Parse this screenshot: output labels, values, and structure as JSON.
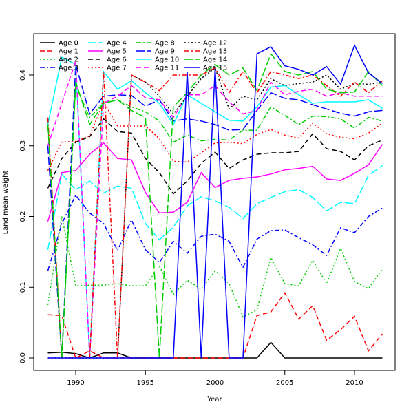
{
  "chart_data": {
    "type": "line",
    "title": "",
    "xlabel": "Year",
    "ylabel": "Land mean weight",
    "xlim": [
      1987.6,
      2012.5
    ],
    "ylim": [
      -0.018,
      0.457
    ],
    "xticks": [
      "1990",
      "1995",
      "2000",
      "2005",
      "2010"
    ],
    "yticks": [
      "0.0",
      "0.1",
      "0.2",
      "0.3",
      "0.4"
    ],
    "legend_position": "top-left",
    "x": [
      1988,
      1989,
      1990,
      1991,
      1992,
      1993,
      1994,
      1995,
      1996,
      1997,
      1998,
      1999,
      2000,
      2001,
      2002,
      2003,
      2004,
      2005,
      2006,
      2007,
      2008,
      2009,
      2010,
      2011,
      2012
    ],
    "series": [
      {
        "name": "Age 0",
        "color": "#000000",
        "style": "solid",
        "values": [
          0.007,
          0.008,
          0.006,
          0,
          0.007,
          0.007,
          0,
          0,
          0,
          0,
          0,
          0,
          0,
          0,
          0,
          0,
          0.022,
          0,
          0,
          0,
          0,
          0,
          0,
          0,
          0
        ]
      },
      {
        "name": "Age 1",
        "color": "#ff0000",
        "style": "dashed",
        "values": [
          0.061,
          0.06,
          0,
          0.01,
          0,
          0,
          0,
          0,
          0,
          0,
          0,
          0,
          0,
          0,
          0,
          0.06,
          0.065,
          0.092,
          0.055,
          0.074,
          0.025,
          0.04,
          0.059,
          0.01,
          0.034
        ]
      },
      {
        "name": "Age 2",
        "color": "#00cd00",
        "style": "dotted",
        "values": [
          0.075,
          0.2,
          0.102,
          0.103,
          0.103,
          0.105,
          0.102,
          0.102,
          0.13,
          0.09,
          0.11,
          0.097,
          0.123,
          0.105,
          0.058,
          0.068,
          0.142,
          0.105,
          0.102,
          0.138,
          0.105,
          0.155,
          0.108,
          0.098,
          0.126
        ]
      },
      {
        "name": "Age 3",
        "color": "#0000ff",
        "style": "dotdash",
        "values": [
          0.123,
          0.19,
          0.23,
          0.205,
          0.19,
          0.152,
          0.195,
          0.153,
          0.135,
          0.165,
          0.148,
          0.172,
          0.175,
          0.165,
          0.128,
          0.168,
          0.18,
          0.181,
          0.17,
          0.16,
          0.145,
          0.184,
          0.177,
          0.2,
          0.212
        ]
      },
      {
        "name": "Age 4",
        "color": "#00ffff",
        "style": "longdash",
        "values": [
          0.153,
          0.26,
          0.238,
          0.25,
          0.233,
          0.243,
          0.24,
          0.19,
          0.167,
          0.185,
          0.215,
          0.228,
          0.222,
          0.213,
          0.197,
          0.218,
          0.227,
          0.235,
          0.238,
          0.227,
          0.208,
          0.22,
          0.218,
          0.258,
          0.272
        ]
      },
      {
        "name": "Age 5",
        "color": "#ff00ff",
        "style": "solid",
        "values": [
          0.193,
          0.262,
          0.265,
          0.288,
          0.304,
          0.282,
          0.28,
          0.234,
          0.205,
          0.206,
          0.22,
          0.262,
          0.241,
          0.251,
          0.254,
          0.256,
          0.26,
          0.266,
          0.268,
          0.271,
          0.253,
          0.251,
          0.261,
          0.273,
          0.302
        ]
      },
      {
        "name": "Age 6",
        "color": "#000000",
        "style": "dashed",
        "values": [
          0.24,
          0.282,
          0.305,
          0.313,
          0.338,
          0.32,
          0.318,
          0.282,
          0.262,
          0.232,
          0.25,
          0.275,
          0.291,
          0.268,
          0.28,
          0.288,
          0.29,
          0.29,
          0.292,
          0.317,
          0.296,
          0.292,
          0.28,
          0.3,
          0.308
        ]
      },
      {
        "name": "Age 7",
        "color": "#ff0000",
        "style": "dotted",
        "values": [
          0.265,
          0.305,
          0.306,
          0.314,
          0.362,
          0.328,
          0.328,
          0.328,
          0.31,
          0.278,
          0.277,
          0.29,
          0.304,
          0.305,
          0.303,
          0.316,
          0.323,
          0.315,
          0.311,
          0.332,
          0.317,
          0.312,
          0.31,
          0.318,
          0.332
        ]
      },
      {
        "name": "Age 8",
        "color": "#00cd00",
        "style": "dotdash",
        "values": [
          0.335,
          0,
          0.385,
          0.34,
          0.36,
          0.365,
          0.355,
          0.348,
          0.335,
          0.305,
          0.315,
          0.307,
          0.309,
          0.308,
          0.322,
          0.322,
          0.355,
          0.343,
          0.33,
          0.342,
          0.341,
          0.338,
          0.325,
          0.34,
          0.335
        ]
      },
      {
        "name": "Age 9",
        "color": "#0000ff",
        "style": "longdash",
        "values": [
          0.3,
          0,
          0.415,
          0.345,
          0.37,
          0.372,
          0.371,
          0.356,
          0.365,
          0.335,
          0.338,
          0.335,
          0.33,
          0.322,
          0.323,
          0.35,
          0.375,
          0.367,
          0.365,
          0.358,
          0.352,
          0.346,
          0.342,
          0.348,
          0.35
        ]
      },
      {
        "name": "Age 10",
        "color": "#00ffff",
        "style": "solid",
        "values": [
          0.33,
          0.425,
          0.415,
          0,
          0.405,
          0.38,
          0.392,
          0.375,
          0.36,
          0.33,
          0.372,
          0.36,
          0.348,
          0.336,
          0.335,
          0.355,
          0.383,
          0.385,
          0.372,
          0.36,
          0.362,
          0.362,
          0.362,
          0.365,
          0.353
        ]
      },
      {
        "name": "Age 11",
        "color": "#ff00ff",
        "style": "dashed",
        "values": [
          0.3,
          0.36,
          0.42,
          0,
          0.36,
          0.37,
          0.385,
          0.368,
          0.365,
          0.34,
          0.372,
          0.372,
          0.385,
          0.362,
          0.345,
          0.35,
          0.39,
          0.372,
          0.377,
          0.38,
          0.37,
          0.375,
          0.37,
          0.37,
          0.37
        ]
      },
      {
        "name": "Age 12",
        "color": "#000000",
        "style": "dotted",
        "values": [
          0,
          0,
          0,
          0,
          0,
          0,
          0.4,
          0.39,
          0.37,
          0.345,
          0.37,
          0.395,
          0.41,
          0.352,
          0.37,
          0.365,
          0.395,
          0.385,
          0.388,
          0.39,
          0.4,
          0.38,
          0.388,
          0.387,
          0.39
        ]
      },
      {
        "name": "Age 13",
        "color": "#ff0000",
        "style": "dotdash",
        "values": [
          0.34,
          0,
          0,
          0,
          0.405,
          0,
          0.4,
          0.39,
          0.378,
          0.4,
          0.4,
          0.4,
          0.41,
          0.375,
          0.405,
          0.375,
          0.405,
          0.4,
          0.395,
          0.4,
          0.385,
          0.37,
          0.39,
          0.375,
          0.392
        ]
      },
      {
        "name": "Age 14",
        "color": "#00cd00",
        "style": "longdash",
        "values": [
          0.33,
          0,
          0.39,
          0.33,
          0.36,
          0.365,
          0.35,
          0.34,
          0,
          0.355,
          0.375,
          0.4,
          0.415,
          0.4,
          0.41,
          0.378,
          0.43,
          0.405,
          0.4,
          0.405,
          0.38,
          0.375,
          0.376,
          0.405,
          0.385
        ]
      },
      {
        "name": "Age 15",
        "color": "#0000ff",
        "style": "solid",
        "values": [
          0,
          0,
          0,
          0,
          0,
          0,
          0,
          0,
          0,
          0,
          0.405,
          0,
          0.41,
          0,
          0,
          0.43,
          0.44,
          0.413,
          0.408,
          0.4,
          0.412,
          0.387,
          0.442,
          0.403,
          0.388
        ]
      }
    ]
  }
}
